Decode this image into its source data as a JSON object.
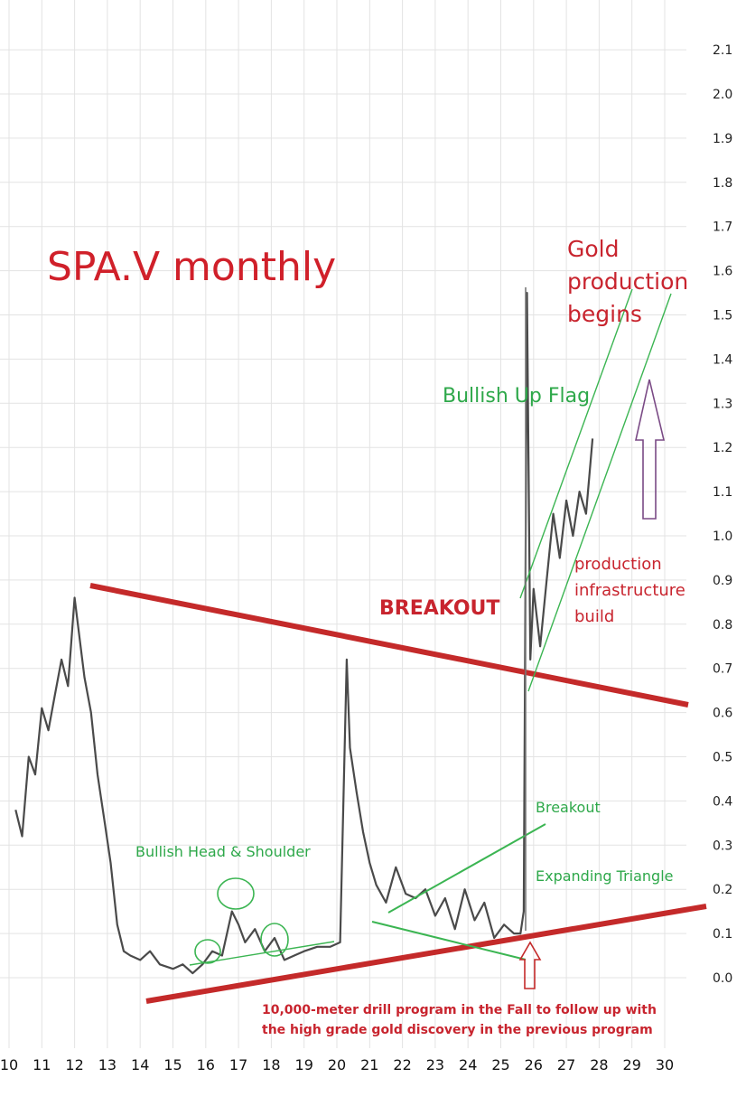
{
  "chart_data": {
    "type": "line",
    "title": "SPA.V  monthly",
    "xlabel": "",
    "ylabel": "",
    "x_ticks": [
      "10",
      "11",
      "12",
      "13",
      "14",
      "15",
      "16",
      "17",
      "18",
      "19",
      "20",
      "21",
      "22",
      "23",
      "24",
      "25",
      "26",
      "27",
      "28",
      "29",
      "30"
    ],
    "y_ticks": [
      "0.0",
      "0.1",
      "0.2",
      "0.3",
      "0.4",
      "0.5",
      "0.6",
      "0.7",
      "0.8",
      "0.9",
      "1.0",
      "1.1",
      "1.2",
      "1.3",
      "1.4",
      "1.5",
      "1.6",
      "1.7",
      "1.8",
      "1.9",
      "2.0",
      "2.1"
    ],
    "ylim": [
      0,
      2.1
    ],
    "xlim": [
      10,
      30
    ],
    "grid": true,
    "series": [
      {
        "x": [
          10.2,
          10.4,
          10.6,
          10.8,
          11.0,
          11.2,
          11.4,
          11.6,
          11.8,
          12.0,
          12.1,
          12.3,
          12.5,
          12.7,
          12.9,
          13.1,
          13.3,
          13.5,
          13.7,
          14.0,
          14.3,
          14.6,
          15.0,
          15.3,
          15.6,
          15.9,
          16.2,
          16.5,
          16.8,
          17.0,
          17.2,
          17.5,
          17.8,
          18.1,
          18.4,
          18.7,
          19.0,
          19.4,
          19.8,
          20.1,
          20.3,
          20.4,
          20.6,
          20.8,
          21.0,
          21.2,
          21.5,
          21.8,
          22.1,
          22.4,
          22.7,
          23.0,
          23.3,
          23.6,
          23.9,
          24.2,
          24.5,
          24.8,
          25.1,
          25.4,
          25.6,
          25.7,
          25.8,
          25.9,
          26.0,
          26.2,
          26.4,
          26.6,
          26.8,
          27.0,
          27.2,
          27.4,
          27.6,
          27.8
        ],
        "values": [
          0.38,
          0.32,
          0.5,
          0.46,
          0.61,
          0.56,
          0.64,
          0.72,
          0.66,
          0.86,
          0.8,
          0.68,
          0.6,
          0.46,
          0.36,
          0.26,
          0.12,
          0.06,
          0.05,
          0.04,
          0.06,
          0.03,
          0.02,
          0.03,
          0.01,
          0.03,
          0.06,
          0.05,
          0.15,
          0.12,
          0.08,
          0.11,
          0.06,
          0.09,
          0.04,
          0.05,
          0.06,
          0.07,
          0.07,
          0.08,
          0.72,
          0.52,
          0.42,
          0.33,
          0.26,
          0.21,
          0.17,
          0.25,
          0.19,
          0.18,
          0.2,
          0.14,
          0.18,
          0.11,
          0.2,
          0.13,
          0.17,
          0.09,
          0.12,
          0.1,
          0.1,
          0.15,
          1.55,
          0.72,
          0.88,
          0.75,
          0.9,
          1.05,
          0.95,
          1.08,
          1.0,
          1.1,
          1.05,
          1.22
        ]
      }
    ],
    "annotations": {
      "gold_production": [
        "Gold",
        "production",
        "begins"
      ],
      "bullish_up_flag": "Bullish Up Flag",
      "breakout_big": "BREAKOUT",
      "production_infra": [
        "production",
        "infrastructure",
        "build"
      ],
      "breakout_small": "Breakout",
      "expanding_triangle": "Expanding Triangle",
      "bullish_hs": "Bullish Head & Shoulder",
      "drill_note": [
        "10,000-meter drill program in the Fall to follow up with",
        "the high grade gold discovery in the previous program"
      ]
    }
  }
}
